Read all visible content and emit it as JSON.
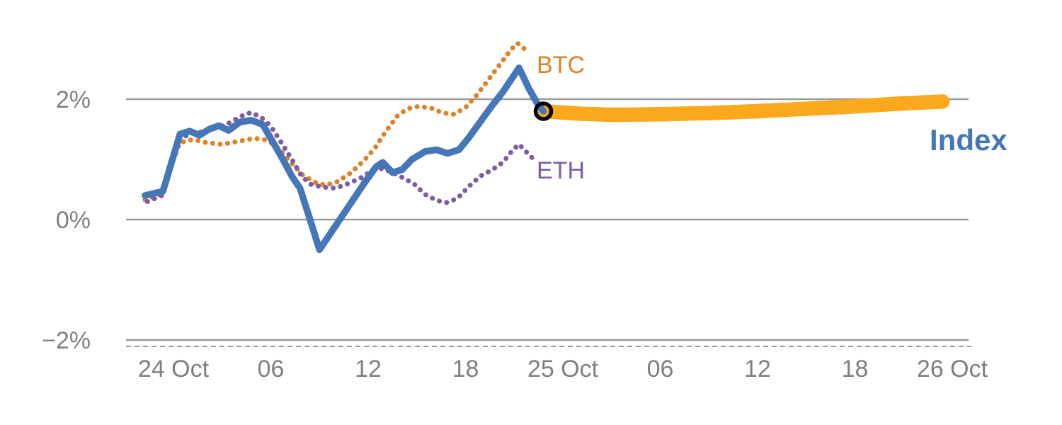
{
  "chart_data": {
    "type": "line",
    "title": "",
    "x_unit": "hours from 24 Oct 00:00",
    "xlim_hours": [
      -3,
      49
    ],
    "ylim_pct": [
      -2.4,
      3.4
    ],
    "grid": "horizontal",
    "y_ticks": [
      {
        "v": 2,
        "label": "2%"
      },
      {
        "v": 0,
        "label": "0%"
      },
      {
        "v": -2,
        "label": "−2%"
      }
    ],
    "x_ticks": [
      {
        "t": 0,
        "label": "24 Oct"
      },
      {
        "t": 6,
        "label": "06"
      },
      {
        "t": 12,
        "label": "12"
      },
      {
        "t": 18,
        "label": "18"
      },
      {
        "t": 24,
        "label": "25 Oct"
      },
      {
        "t": 30,
        "label": "06"
      },
      {
        "t": 36,
        "label": "12"
      },
      {
        "t": 42,
        "label": "18"
      },
      {
        "t": 48,
        "label": "26 Oct"
      }
    ],
    "series": [
      {
        "name": "Index",
        "color": "#4577B8",
        "style": "solid",
        "points": [
          [
            -1.75,
            0.4
          ],
          [
            -0.65,
            0.47
          ],
          [
            0.4,
            1.42
          ],
          [
            1.0,
            1.47
          ],
          [
            1.6,
            1.4
          ],
          [
            2.2,
            1.5
          ],
          [
            2.8,
            1.56
          ],
          [
            3.4,
            1.48
          ],
          [
            4.1,
            1.62
          ],
          [
            4.8,
            1.65
          ],
          [
            5.5,
            1.58
          ],
          [
            6.1,
            1.3
          ],
          [
            6.7,
            1.02
          ],
          [
            7.3,
            0.72
          ],
          [
            7.8,
            0.52
          ],
          [
            8.3,
            0.1
          ],
          [
            9.0,
            -0.5
          ],
          [
            9.7,
            -0.22
          ],
          [
            10.4,
            0.06
          ],
          [
            11.1,
            0.34
          ],
          [
            11.8,
            0.62
          ],
          [
            12.5,
            0.88
          ],
          [
            12.9,
            0.95
          ],
          [
            13.5,
            0.78
          ],
          [
            14.1,
            0.83
          ],
          [
            14.7,
            1.0
          ],
          [
            15.5,
            1.13
          ],
          [
            16.2,
            1.16
          ],
          [
            16.9,
            1.1
          ],
          [
            17.6,
            1.16
          ],
          [
            18.2,
            1.36
          ],
          [
            18.9,
            1.62
          ],
          [
            19.6,
            1.88
          ],
          [
            20.3,
            2.12
          ],
          [
            20.9,
            2.36
          ],
          [
            21.3,
            2.52
          ],
          [
            21.9,
            2.18
          ],
          [
            22.4,
            1.94
          ],
          [
            22.8,
            1.8
          ]
        ]
      },
      {
        "name": "BTC",
        "color": "#DD8327",
        "style": "dotted",
        "points": [
          [
            -1.75,
            0.33
          ],
          [
            -0.8,
            0.42
          ],
          [
            0.4,
            1.28
          ],
          [
            1.2,
            1.33
          ],
          [
            2.0,
            1.28
          ],
          [
            3.0,
            1.25
          ],
          [
            4.0,
            1.3
          ],
          [
            5.0,
            1.35
          ],
          [
            5.8,
            1.32
          ],
          [
            6.5,
            1.18
          ],
          [
            7.3,
            0.93
          ],
          [
            8.0,
            0.73
          ],
          [
            8.8,
            0.61
          ],
          [
            9.4,
            0.57
          ],
          [
            10.1,
            0.63
          ],
          [
            10.9,
            0.77
          ],
          [
            11.7,
            0.97
          ],
          [
            12.4,
            1.18
          ],
          [
            13.1,
            1.47
          ],
          [
            13.8,
            1.72
          ],
          [
            14.4,
            1.84
          ],
          [
            15.1,
            1.88
          ],
          [
            15.9,
            1.85
          ],
          [
            16.6,
            1.77
          ],
          [
            17.3,
            1.75
          ],
          [
            18.0,
            1.86
          ],
          [
            18.7,
            2.07
          ],
          [
            19.4,
            2.32
          ],
          [
            20.1,
            2.57
          ],
          [
            20.8,
            2.82
          ],
          [
            21.2,
            2.93
          ],
          [
            21.9,
            2.78
          ]
        ]
      },
      {
        "name": "ETH",
        "color": "#7D5CA6",
        "style": "dotted",
        "points": [
          [
            -1.6,
            0.3
          ],
          [
            -0.7,
            0.4
          ],
          [
            0.3,
            1.33
          ],
          [
            1.0,
            1.42
          ],
          [
            1.8,
            1.46
          ],
          [
            2.6,
            1.52
          ],
          [
            3.4,
            1.6
          ],
          [
            4.2,
            1.72
          ],
          [
            4.8,
            1.78
          ],
          [
            5.4,
            1.7
          ],
          [
            6.0,
            1.55
          ],
          [
            6.6,
            1.3
          ],
          [
            7.3,
            1.0
          ],
          [
            7.9,
            0.72
          ],
          [
            8.5,
            0.58
          ],
          [
            9.2,
            0.54
          ],
          [
            10.0,
            0.52
          ],
          [
            10.8,
            0.6
          ],
          [
            11.6,
            0.7
          ],
          [
            12.3,
            0.82
          ],
          [
            12.9,
            0.85
          ],
          [
            13.5,
            0.78
          ],
          [
            14.1,
            0.7
          ],
          [
            14.8,
            0.6
          ],
          [
            15.5,
            0.42
          ],
          [
            16.2,
            0.32
          ],
          [
            16.8,
            0.28
          ],
          [
            17.5,
            0.35
          ],
          [
            18.2,
            0.55
          ],
          [
            18.9,
            0.72
          ],
          [
            19.6,
            0.82
          ],
          [
            20.3,
            0.95
          ],
          [
            20.9,
            1.15
          ],
          [
            21.3,
            1.25
          ],
          [
            21.9,
            1.08
          ],
          [
            22.4,
            0.95
          ]
        ]
      }
    ],
    "forecast_band": {
      "name": "Index forecast",
      "color": "#FBA81C",
      "half_width_pct": 0.12,
      "points": [
        [
          22.8,
          1.8
        ],
        [
          25,
          1.76
        ],
        [
          27,
          1.74
        ],
        [
          30,
          1.75
        ],
        [
          33,
          1.77
        ],
        [
          36,
          1.8
        ],
        [
          39,
          1.84
        ],
        [
          42,
          1.88
        ],
        [
          45,
          1.93
        ],
        [
          47.4,
          1.96
        ]
      ]
    },
    "marker": {
      "t": 22.8,
      "v": 1.8,
      "style": "black-open-circle"
    },
    "labels": {
      "btc": "BTC",
      "eth": "ETH",
      "index": "Index"
    }
  }
}
